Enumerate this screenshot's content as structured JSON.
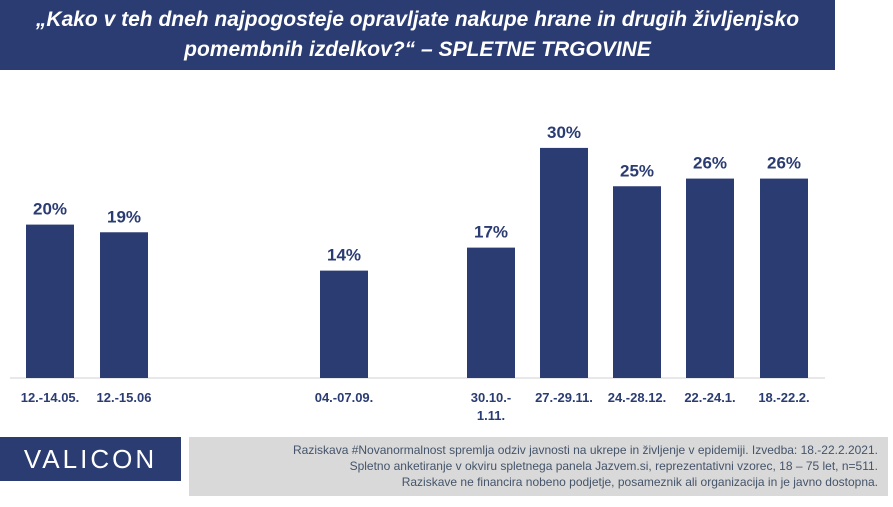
{
  "header": {
    "title_line1": "„Kako v teh dneh najpogosteje opravljate nakupe hrane in drugih življenjsko",
    "title_line2": "pomembnih izdelkov?“ – SPLETNE TRGOVINE"
  },
  "colors": {
    "bar": "#2b3c72",
    "title_bg": "#2b3c72",
    "label": "#2b3c72",
    "note_bg": "#d9d9d9"
  },
  "chart_data": {
    "type": "bar",
    "categories": [
      "12.-14.05.",
      "12.-15.06",
      "04.-07.09.",
      "30.10.-\n1.11.",
      "27.-29.11.",
      "24.-28.12.",
      "22.-24.1.",
      "18.-22.2."
    ],
    "values": [
      20,
      19,
      14,
      17,
      30,
      25,
      26,
      26
    ],
    "value_labels": [
      "20%",
      "19%",
      "14%",
      "17%",
      "30%",
      "25%",
      "26%",
      "26%"
    ],
    "value_unit": "%",
    "ylim": [
      0,
      30
    ],
    "grid": false,
    "legend": "none"
  },
  "footer": {
    "logo": "VALICON",
    "note_lines": [
      "Raziskava #Novanormalnost spremlja odziv javnosti na ukrepe in življenje v epidemiji. Izvedba: 18.-22.2.2021.",
      "Spletno anketiranje v okviru spletnega panela Jazvem.si, reprezentativni vzorec, 18 – 75 let, n=511.",
      "Raziskave ne financira nobeno podjetje, posameznik ali organizacija in je javno dostopna."
    ]
  }
}
